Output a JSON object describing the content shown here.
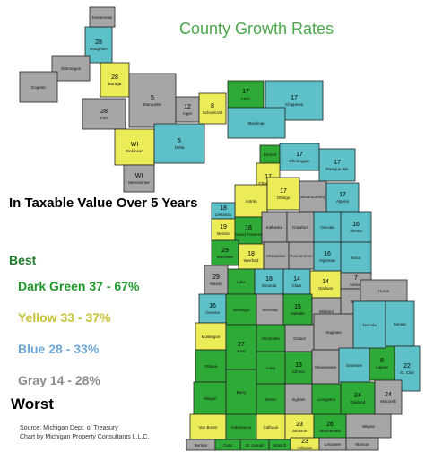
{
  "map": {
    "title": "County Growth Rates",
    "subtitle": "In Taxable Value Over 5 Years",
    "legend": {
      "best": "Best",
      "worst": "Worst",
      "items": [
        {
          "label": "Dark Green 37 - 67%",
          "color": "#2eaa36"
        },
        {
          "label": "Yellow  33 - 37%",
          "color": "#ecec58"
        },
        {
          "label": "Blue 28 - 33%",
          "color": "#5ec0c8"
        },
        {
          "label": "Gray 14 - 28%",
          "color": "#a6a6a6"
        }
      ]
    },
    "source_line1": "Source:  Michigan Dept. of Treasury",
    "source_line2": "Chart by Michigan Property Consultants L.L.C.",
    "counties": [
      {
        "name": "Houghton",
        "value": "28",
        "color": "blue"
      },
      {
        "name": "Ontonagon",
        "value": "",
        "color": "gray"
      },
      {
        "name": "Gogebic",
        "value": "",
        "color": "gray"
      },
      {
        "name": "Baraga",
        "value": "28",
        "color": "yellow"
      },
      {
        "name": "Iron",
        "value": "28",
        "color": "gray"
      },
      {
        "name": "Marquette",
        "value": "5",
        "color": "gray"
      },
      {
        "name": "Dickinson",
        "value": "WI",
        "color": "yellow"
      },
      {
        "name": "Menominee",
        "value": "WI",
        "color": "gray"
      },
      {
        "name": "Alger",
        "value": "12",
        "color": "gray"
      },
      {
        "name": "Schoolcraft",
        "value": "8",
        "color": "yellow"
      },
      {
        "name": "Delta",
        "value": "5",
        "color": "blue"
      },
      {
        "name": "Luce",
        "value": "17",
        "color": "green"
      },
      {
        "name": "Chippewa",
        "value": "17",
        "color": "blue"
      },
      {
        "name": "Mackinac",
        "value": "",
        "color": "blue"
      },
      {
        "name": "Emmet",
        "value": "",
        "color": "green"
      },
      {
        "name": "Cheboygan",
        "value": "17",
        "color": "blue"
      },
      {
        "name": "Presque Isle",
        "value": "17",
        "color": "blue"
      },
      {
        "name": "Charlevoix",
        "value": "17",
        "color": "yellow"
      },
      {
        "name": "Antrim",
        "value": "",
        "color": "yellow"
      },
      {
        "name": "Otsego",
        "value": "17",
        "color": "yellow"
      },
      {
        "name": "Montmorency",
        "value": "",
        "color": "gray"
      },
      {
        "name": "Alpena",
        "value": "17",
        "color": "blue"
      },
      {
        "name": "Leelanau",
        "value": "18",
        "color": "blue"
      },
      {
        "name": "Benzie",
        "value": "19",
        "color": "yellow"
      },
      {
        "name": "Grand Traverse",
        "value": "18",
        "color": "green"
      },
      {
        "name": "Kalkaska",
        "value": "",
        "color": "gray"
      },
      {
        "name": "Crawford",
        "value": "",
        "color": "gray"
      },
      {
        "name": "Oscoda",
        "value": "",
        "color": "blue"
      },
      {
        "name": "Alcona",
        "value": "16",
        "color": "blue"
      },
      {
        "name": "Manistee",
        "value": "29",
        "color": "green"
      },
      {
        "name": "Wexford",
        "value": "18",
        "color": "yellow"
      },
      {
        "name": "Missaukee",
        "value": "",
        "color": "gray"
      },
      {
        "name": "Roscommon",
        "value": "",
        "color": "gray"
      },
      {
        "name": "Ogemaw",
        "value": "16",
        "color": "blue"
      },
      {
        "name": "Iosco",
        "value": "",
        "color": "blue"
      },
      {
        "name": "Mason",
        "value": "29",
        "color": "gray"
      },
      {
        "name": "Lake",
        "value": "",
        "color": "green"
      },
      {
        "name": "Osceola",
        "value": "18",
        "color": "blue"
      },
      {
        "name": "Clare",
        "value": "14",
        "color": "blue"
      },
      {
        "name": "Gladwin",
        "value": "14",
        "color": "yellow"
      },
      {
        "name": "Arenac",
        "value": "7",
        "color": "gray"
      },
      {
        "name": "Oceana",
        "value": "16",
        "color": "blue"
      },
      {
        "name": "Newaygo",
        "value": "",
        "color": "green"
      },
      {
        "name": "Mecosta",
        "value": "",
        "color": "gray"
      },
      {
        "name": "Isabella",
        "value": "15",
        "color": "green"
      },
      {
        "name": "Midland",
        "value": "",
        "color": "gray"
      },
      {
        "name": "Bay",
        "value": "",
        "color": "gray"
      },
      {
        "name": "Muskegon",
        "value": "",
        "color": "yellow"
      },
      {
        "name": "Montcalm",
        "value": "",
        "color": "green"
      },
      {
        "name": "Gratiot",
        "value": "",
        "color": "gray"
      },
      {
        "name": "Saginaw",
        "value": "",
        "color": "gray"
      },
      {
        "name": "Ottawa",
        "value": "",
        "color": "green"
      },
      {
        "name": "Kent",
        "value": "27",
        "color": "green"
      },
      {
        "name": "Ionia",
        "value": "",
        "color": "green"
      },
      {
        "name": "Clinton",
        "value": "13",
        "color": "green"
      },
      {
        "name": "Shiawassee",
        "value": "",
        "color": "gray"
      },
      {
        "name": "Genesee",
        "value": "",
        "color": "blue"
      },
      {
        "name": "Lapeer",
        "value": "8",
        "color": "green"
      },
      {
        "name": "Huron",
        "value": "",
        "color": "gray"
      },
      {
        "name": "Tuscola",
        "value": "",
        "color": "blue"
      },
      {
        "name": "Sanilac",
        "value": "",
        "color": "blue"
      },
      {
        "name": "St. Clair",
        "value": "22",
        "color": "blue"
      },
      {
        "name": "Allegan",
        "value": "",
        "color": "green"
      },
      {
        "name": "Barry",
        "value": "",
        "color": "green"
      },
      {
        "name": "Eaton",
        "value": "",
        "color": "green"
      },
      {
        "name": "Ingham",
        "value": "",
        "color": "gray"
      },
      {
        "name": "Livingston",
        "value": "",
        "color": "green"
      },
      {
        "name": "Oakland",
        "value": "24",
        "color": "green"
      },
      {
        "name": "Macomb",
        "value": "24",
        "color": "gray"
      },
      {
        "name": "Van Buren",
        "value": "",
        "color": "yellow"
      },
      {
        "name": "Kalamazoo",
        "value": "",
        "color": "green"
      },
      {
        "name": "Calhoun",
        "value": "",
        "color": "yellow"
      },
      {
        "name": "Jackson",
        "value": "23",
        "color": "yellow"
      },
      {
        "name": "Washtenaw",
        "value": "26",
        "color": "green"
      },
      {
        "name": "Wayne",
        "value": "",
        "color": "gray"
      },
      {
        "name": "Berrien",
        "value": "",
        "color": "gray"
      },
      {
        "name": "Cass",
        "value": "",
        "color": "green"
      },
      {
        "name": "St. Joseph",
        "value": "",
        "color": "green"
      },
      {
        "name": "Branch",
        "value": "",
        "color": "green"
      },
      {
        "name": "Hillsdale",
        "value": "23",
        "color": "yellow"
      },
      {
        "name": "Lenawee",
        "value": "",
        "color": "gray"
      },
      {
        "name": "Monroe",
        "value": "",
        "color": "gray"
      },
      {
        "name": "Keweenaw",
        "value": "",
        "color": "gray"
      }
    ]
  }
}
